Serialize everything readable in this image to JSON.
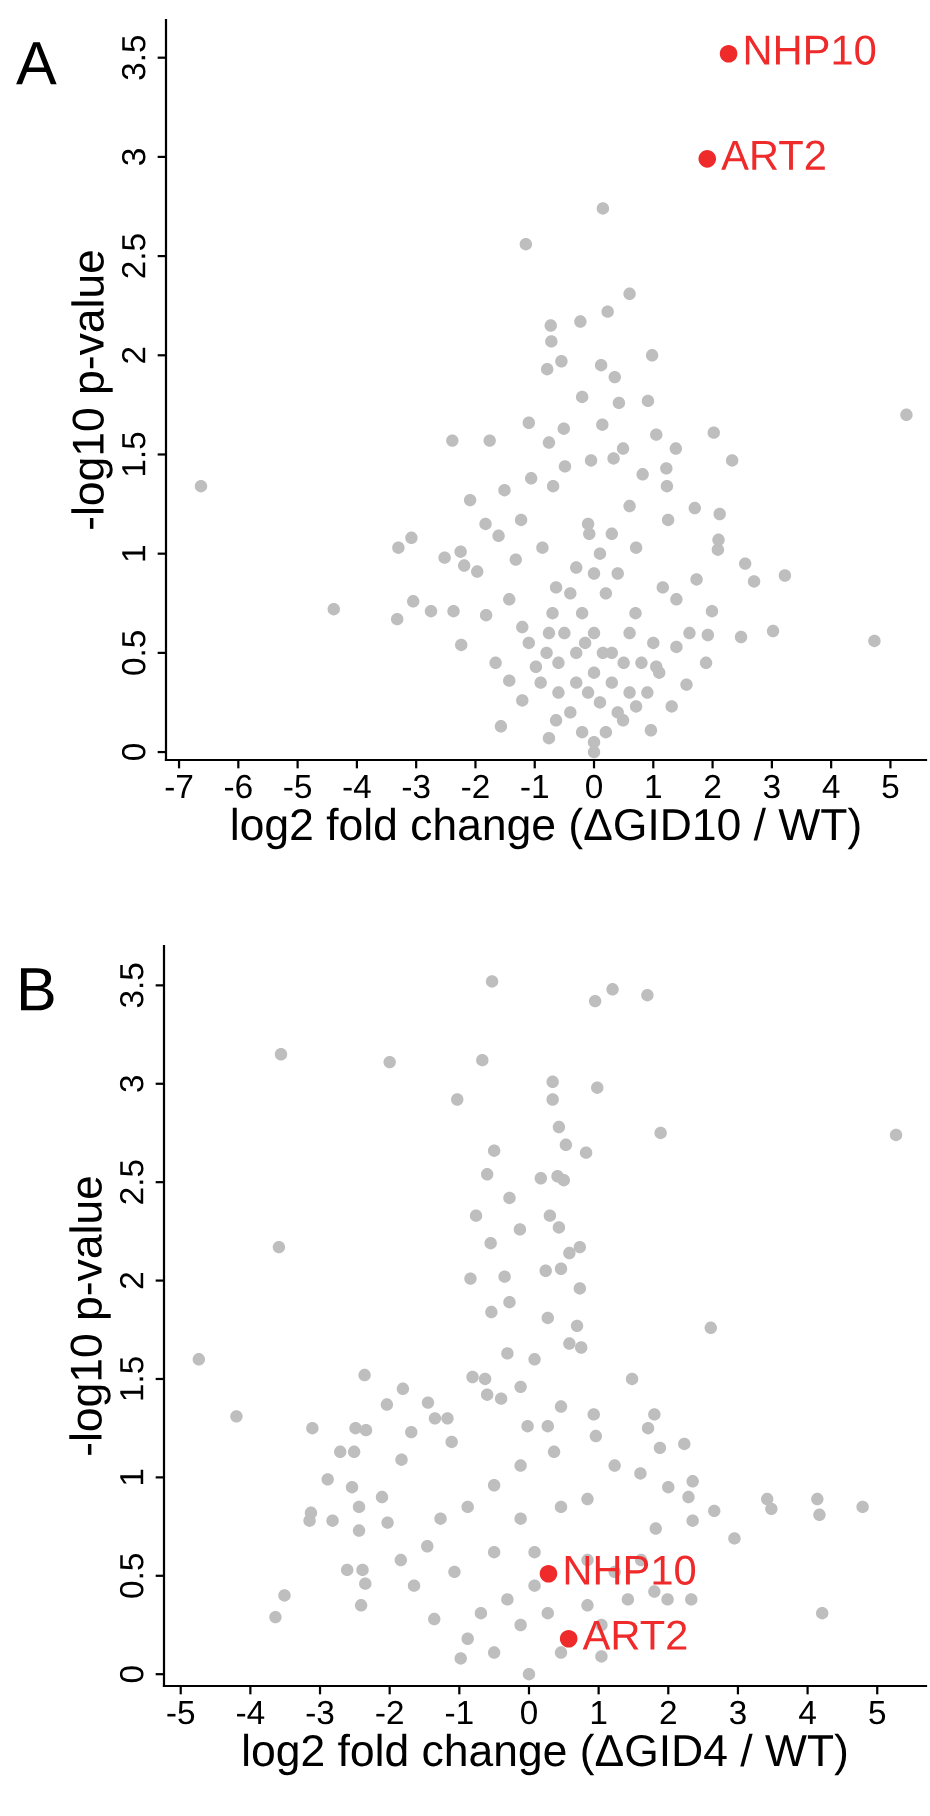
{
  "chart_data": [
    {
      "type": "scatter",
      "title": "A",
      "xlabel": "log2 fold change (ΔGID10 / WT)",
      "ylabel": "-log10 p-value",
      "xlim": [
        -7.22,
        5.6
      ],
      "ylim": [
        -0.04,
        3.69
      ],
      "xticks": [
        -7,
        -6,
        -5,
        -4,
        -3,
        -2,
        -1,
        0,
        1,
        2,
        3,
        4,
        5
      ],
      "yticks": [
        0,
        0.5,
        1,
        1.5,
        2,
        2.5,
        3,
        3.5
      ],
      "marker": "circle",
      "grid": false,
      "legend": false,
      "series": [
        {
          "color": "#bebebe",
          "x": [
            -6.63,
            -4.39,
            -3.32,
            -3.3,
            -3.08,
            -3.05,
            -2.75,
            -2.52,
            -2.39,
            -2.37,
            -2.25,
            -2.24,
            -2.19,
            -2.09,
            -1.97,
            -1.83,
            -1.76,
            -1.82,
            -1.66,
            -1.57,
            -1.51,
            -1.61,
            -1.15,
            -1.1,
            -1.06,
            -0.79,
            -0.73,
            -0.72,
            -0.55,
            -0.51,
            -0.76,
            -0.23,
            -0.2,
            0.15,
            0.23,
            0.6,
            0.98,
            0.12,
            0.35,
            0.42,
            0.91,
            0.14,
            1.05,
            1.38,
            2.02,
            2.33,
            5.27,
            2.12,
            1.7,
            2.1,
            2.09,
            2.55,
            2.7,
            3.22,
            3.02,
            2.48,
            4.73,
            1.99,
            1.92,
            1.89,
            1.56,
            1.31,
            0.96,
            -0.76,
            0.0,
            0.82,
            1.22,
            1.23,
            1.25,
            0.33,
            0.49,
            -0.05,
            -0.49,
            -0.69,
            -1.23,
            -1.32,
            -1.43,
            -1.21,
            -0.98,
            -1.43,
            -1.21,
            -0.64,
            0.49,
            0.71,
            1.39,
            1.61,
            1.05,
            1.39,
            1.73,
            1.16,
            0.71,
            0.6,
            -0.08,
            -0.3,
            -0.64,
            -0.76,
            -0.87,
            -0.8,
            -0.6,
            -0.4,
            -0.2,
            0,
            0.2,
            0.4,
            0.6,
            0.8,
            1.0,
            -0.5,
            -0.3,
            0,
            0.3,
            0.6,
            -0.2,
            0.2,
            0,
            -0.4,
            0.4,
            -0.1,
            0.1,
            0.3,
            -0.3,
            0.5,
            -0.6,
            0.7,
            -0.7,
            0.1,
            -0.1,
            0.3,
            -0.9,
            0.9,
            1.1,
            -1.1,
            0,
            0.15,
            -0.15
          ],
          "values": [
            1.34,
            0.72,
            0.67,
            1.03,
            1.08,
            0.76,
            0.71,
            0.98,
            1.57,
            0.71,
            1.01,
            0.54,
            0.94,
            1.27,
            0.91,
            1.15,
            1.57,
            0.69,
            0.45,
            0.13,
            1.32,
            1.09,
            2.56,
            1.66,
            1.38,
            1.93,
            2.15,
            2.07,
            1.97,
            1.63,
            1.56,
            2.17,
            1.79,
            2.74,
            2.22,
            2.31,
            2.0,
            1.95,
            1.89,
            1.76,
            1.77,
            1.65,
            1.6,
            1.53,
            1.61,
            1.47,
            1.7,
            1.2,
            1.23,
            1.07,
            1.02,
            0.95,
            0.86,
            0.89,
            0.61,
            0.58,
            0.56,
            0.71,
            0.59,
            0.45,
            0.34,
            0.23,
            0.11,
            0.07,
            0.0,
            1.4,
            1.43,
            1.34,
            1.17,
            1.48,
            1.53,
            1.47,
            1.44,
            1.34,
            1.17,
            0.97,
            0.77,
            0.63,
            0.43,
            0.36,
            0.26,
            0.16,
            0.16,
            0.23,
            0.77,
            0.6,
            0.43,
            0.53,
            0.87,
            0.83,
            1.03,
            1.24,
            1.1,
            0.93,
            0.83,
            0.6,
            1.03,
            0.5,
            0.3,
            0.2,
            0.1,
            0.05,
            0.1,
            0.2,
            0.3,
            0.45,
            0.55,
            0.6,
            0.5,
            0.4,
            0.5,
            0.6,
            0.7,
            0.8,
            0.9,
            0.8,
            0.9,
            0.3,
            0.25,
            0.35,
            0.35,
            0.45,
            0.45,
            0.7,
            0.7,
            1.0,
            1.15,
            1.1,
            0.35,
            0.3,
            0.4,
            0.55,
            0.6,
            0.5,
            0.55
          ]
        },
        {
          "color": "#ee2a2a",
          "x": [
            2.27,
            1.91
          ],
          "values": [
            3.52,
            2.99
          ]
        }
      ],
      "annotations": [
        {
          "text": "NHP10",
          "x": 2.27,
          "y": 3.52
        },
        {
          "text": "ART2",
          "x": 1.91,
          "y": 2.99
        }
      ]
    },
    {
      "type": "scatter",
      "title": "B",
      "xlabel": "log2 fold change (ΔGID4 / WT)",
      "ylabel": "-log10 p-value",
      "xlim": [
        -5.24,
        5.7
      ],
      "ylim": [
        -0.06,
        3.7
      ],
      "xticks": [
        -5,
        -4,
        -3,
        -2,
        -1,
        0,
        1,
        2,
        3,
        4,
        5
      ],
      "yticks": [
        0,
        0.5,
        1,
        1.5,
        2,
        2.5,
        3,
        3.5
      ],
      "marker": "circle",
      "grid": false,
      "legend": false,
      "series": [
        {
          "color": "#bebebe",
          "x": [
            -4.74,
            -4.2,
            -3.56,
            -3.59,
            -3.51,
            -3.64,
            -3.11,
            -3.13,
            -3.15,
            -2.82,
            -2.89,
            -2.71,
            -2.51,
            -2.49,
            -2.36,
            -2.34,
            -2.61,
            -2.39,
            -2.35,
            -2.41,
            -2.54,
            -2.44,
            -2.44,
            -2.04,
            -2.0,
            -1.81,
            -1.69,
            -1.83,
            -2.11,
            -2.03,
            -1.45,
            -1.35,
            -1.17,
            -1.11,
            -1.03,
            -0.84,
            -0.76,
            -0.67,
            -0.6,
            -0.55,
            -0.53,
            -0.5,
            -0.54,
            -0.35,
            -0.28,
            -0.28,
            -0.13,
            0.17,
            0.3,
            0.24,
            0.34,
            0.34,
            0.43,
            0.43,
            0.41,
            0.5,
            0.53,
            0.46,
            0.58,
            0.73,
            0.73,
            0.82,
            0.95,
            0.98,
            1.2,
            1.7,
            1.89,
            1.48,
            2.61,
            5.27,
            1.71,
            1.8,
            2.23,
            1.88,
            2.35,
            2.29,
            2.0,
            2.66,
            2.95,
            3.42,
            3.48,
            4.14,
            4.17,
            4.79,
            4.21,
            1.8,
            1.99,
            2.33,
            2.35,
            1.82,
            1.6,
            1.23,
            1.04,
            -0.98,
            0,
            0.69,
            0.58,
            0.75,
            0.93,
            0.96,
            0.27,
            0.08,
            -0.12,
            -0.31,
            -0.63,
            -0.81,
            -0.6,
            -0.4,
            -0.02,
            0.27,
            0.46,
            0.36,
            0.84,
            -0.12,
            -0.5,
            -0.88,
            -1.27,
            -1.46,
            -1.84,
            -1.65,
            -1.36,
            -0.88,
            -0.5,
            0.46,
            1.04,
            1.42,
            1.23,
            1.61,
            0.84,
            0.08,
            -0.5,
            -1.07,
            -0.31,
            0.27,
            0.84,
            -0.12,
            -0.69,
            -0.12,
            0.46,
            0.08
          ],
          "values": [
            1.6,
            1.31,
            3.15,
            2.17,
            0.4,
            0.29,
            1.25,
            0.82,
            0.78,
            0.78,
            0.99,
            1.13,
            1.13,
            1.25,
            1.52,
            1.24,
            0.53,
            0.53,
            0.46,
            0.35,
            0.95,
            0.85,
            0.73,
            1.37,
            3.11,
            1.45,
            1.23,
            1.09,
            0.9,
            0.77,
            1.38,
            1.3,
            1.3,
            1.18,
            2.92,
            2.01,
            2.33,
            3.12,
            2.54,
            2.19,
            3.52,
            2.66,
            1.84,
            2.02,
            2.42,
            1.89,
            2.26,
            2.52,
            2.33,
            2.05,
            3.01,
            2.92,
            2.78,
            2.27,
            2.53,
            2.51,
            2.69,
            2.06,
            2.14,
            2.17,
            1.96,
            2.65,
            3.42,
            2.98,
            3.48,
            3.45,
            2.75,
            1.5,
            1.76,
            2.74,
            1.25,
            1.32,
            1.17,
            1.15,
            0.98,
            0.9,
            0.95,
            0.83,
            0.69,
            0.89,
            0.84,
            0.89,
            0.81,
            0.85,
            0.31,
            0.42,
            0.38,
            0.38,
            0.78,
            0.74,
            1.02,
            1.06,
            0.09,
            0.08,
            0,
            1.77,
            1.68,
            1.66,
            1.32,
            1.21,
            1.81,
            1.6,
            1.46,
            1.63,
            1.5,
            1.51,
            1.42,
            1.4,
            1.26,
            1.26,
            1.36,
            1.13,
            0.89,
            1.06,
            0.96,
            0.85,
            0.79,
            0.65,
            0.58,
            0.45,
            0.28,
            0.18,
            0.11,
            0.11,
            0.25,
            0.38,
            0.52,
            0.58,
            0.58,
            0.62,
            0.62,
            0.52,
            0.38,
            0.31,
            0.35,
            0.25,
            0.31,
            0.79,
            0.85,
            0.45
          ]
        },
        {
          "color": "#ee2a2a",
          "x": [
            0.28,
            0.57
          ],
          "values": [
            0.51,
            0.18
          ]
        }
      ],
      "annotations": [
        {
          "text": "NHP10",
          "x": 0.28,
          "y": 0.51
        },
        {
          "text": "ART2",
          "x": 0.57,
          "y": 0.18
        }
      ]
    }
  ]
}
